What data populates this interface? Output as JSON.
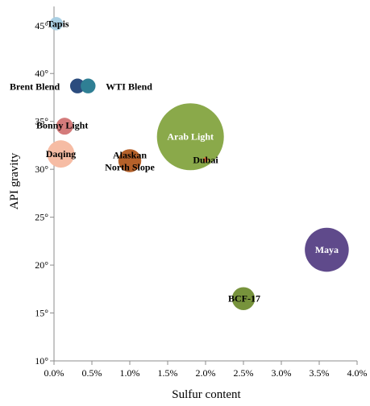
{
  "chart_data": {
    "type": "scatter",
    "xlabel": "Sulfur content",
    "ylabel": "API gravity",
    "xlim": [
      0,
      0.04
    ],
    "ylim": [
      10,
      47
    ],
    "x_ticks": [
      "0.0%",
      "0.5%",
      "1.0%",
      "1.5%",
      "2.0%",
      "2.5%",
      "3.0%",
      "3.5%",
      "4.0%"
    ],
    "y_ticks": [
      "10°",
      "15°",
      "20°",
      "25°",
      "30°",
      "35°",
      "40°",
      "45°"
    ],
    "x_tick_values": [
      0,
      0.005,
      0.01,
      0.015,
      0.02,
      0.025,
      0.03,
      0.035,
      0.04
    ],
    "y_tick_values": [
      10,
      15,
      20,
      25,
      30,
      35,
      40,
      45
    ],
    "grid": false,
    "bubble_size_unit": "relative area",
    "points": [
      {
        "name": "Tapis",
        "x": 0.0003,
        "y": 45.2,
        "size": 0.4,
        "color": "#a9cfe3",
        "label_color": "#000000"
      },
      {
        "name": "Brent Blend",
        "x": 0.0031,
        "y": 38.7,
        "size": 0.5,
        "color": "#2b4c7e",
        "label_color": "#000000"
      },
      {
        "name": "WTI Blend",
        "x": 0.0045,
        "y": 38.7,
        "size": 0.5,
        "color": "#2f7f94",
        "label_color": "#000000"
      },
      {
        "name": "Bonny Light",
        "x": 0.0014,
        "y": 34.5,
        "size": 0.65,
        "color": "#d47b7b",
        "label_color": "#000000"
      },
      {
        "name": "Daqing",
        "x": 0.0009,
        "y": 31.6,
        "size": 1.7,
        "color": "#f6bca4",
        "label_color": "#000000"
      },
      {
        "name": "Alaskan North Slope",
        "x": 0.01,
        "y": 30.9,
        "size": 1.2,
        "color": "#b5612a",
        "label_color": "#000000"
      },
      {
        "name": "Arab Light",
        "x": 0.018,
        "y": 33.4,
        "size": 10.2,
        "color": "#8aa94a",
        "label_color": "#ffffff"
      },
      {
        "name": "Dubai",
        "x": 0.02,
        "y": 31.0,
        "size": 0.06,
        "color": "#e0703a",
        "label_color": "#000000"
      },
      {
        "name": "BCF-17",
        "x": 0.025,
        "y": 16.5,
        "size": 1.2,
        "color": "#77933c",
        "label_color": "#000000"
      },
      {
        "name": "Maya",
        "x": 0.036,
        "y": 21.6,
        "size": 4.4,
        "color": "#5f4a8b",
        "label_color": "#ffffff"
      }
    ]
  }
}
